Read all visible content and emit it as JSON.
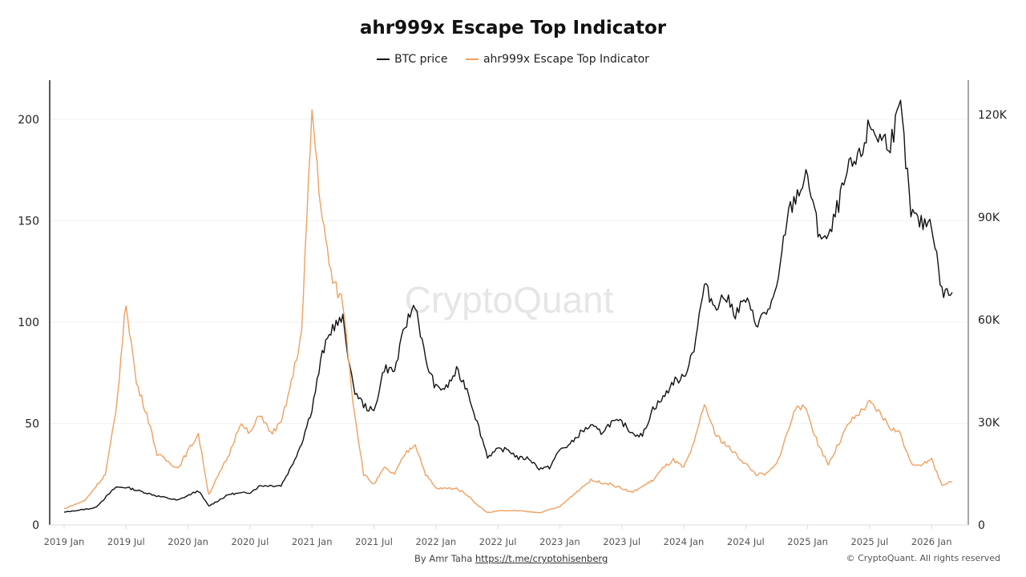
{
  "chart_data": {
    "type": "line",
    "title": "ahr999x Escape Top Indicator",
    "watermark": "CryptoQuant",
    "legend_position": "top-center",
    "grid": true,
    "x_ticks": [
      "2019 Jan",
      "2019 Jul",
      "2020 Jan",
      "2020 Jul",
      "2021 Jan",
      "2021 Jul",
      "2022 Jan",
      "2022 Jul",
      "2023 Jan",
      "2023 Jul",
      "2024 Jan",
      "2024 Jul",
      "2025 Jan",
      "2025 Jul",
      "2026 Jan"
    ],
    "y_left": {
      "ticks": [
        "0",
        "50",
        "100",
        "150",
        "200"
      ],
      "range": [
        0,
        220
      ]
    },
    "y_right": {
      "ticks": [
        "0",
        "30K",
        "60K",
        "90K",
        "120K"
      ],
      "range": [
        0,
        130000
      ]
    },
    "series": [
      {
        "name": "BTC price",
        "axis": "right",
        "color": "#111111",
        "points": [
          [
            "2019-01",
            3700
          ],
          [
            "2019-04",
            5000
          ],
          [
            "2019-06",
            11000
          ],
          [
            "2019-07",
            11000
          ],
          [
            "2019-10",
            8500
          ],
          [
            "2019-12",
            7200
          ],
          [
            "2020-02",
            10000
          ],
          [
            "2020-03",
            5500
          ],
          [
            "2020-05",
            9000
          ],
          [
            "2020-07",
            9500
          ],
          [
            "2020-08",
            11500
          ],
          [
            "2020-10",
            11500
          ],
          [
            "2020-11",
            17000
          ],
          [
            "2020-12",
            24000
          ],
          [
            "2021-01",
            34000
          ],
          [
            "2021-02",
            50000
          ],
          [
            "2021-03",
            58000
          ],
          [
            "2021-04",
            60000
          ],
          [
            "2021-05",
            40000
          ],
          [
            "2021-06",
            35000
          ],
          [
            "2021-07",
            33000
          ],
          [
            "2021-08",
            46000
          ],
          [
            "2021-09",
            45000
          ],
          [
            "2021-10",
            58000
          ],
          [
            "2021-11",
            65000
          ],
          [
            "2021-12",
            48000
          ],
          [
            "2022-01",
            40000
          ],
          [
            "2022-02",
            40000
          ],
          [
            "2022-03",
            45000
          ],
          [
            "2022-04",
            40000
          ],
          [
            "2022-05",
            30000
          ],
          [
            "2022-06",
            20000
          ],
          [
            "2022-07",
            22000
          ],
          [
            "2022-08",
            22000
          ],
          [
            "2022-09",
            19500
          ],
          [
            "2022-10",
            19500
          ],
          [
            "2022-11",
            16500
          ],
          [
            "2022-12",
            16800
          ],
          [
            "2023-01",
            22000
          ],
          [
            "2023-02",
            23500
          ],
          [
            "2023-03",
            27000
          ],
          [
            "2023-04",
            29000
          ],
          [
            "2023-05",
            27000
          ],
          [
            "2023-06",
            30000
          ],
          [
            "2023-07",
            30000
          ],
          [
            "2023-08",
            27000
          ],
          [
            "2023-09",
            26000
          ],
          [
            "2023-10",
            34000
          ],
          [
            "2023-11",
            37000
          ],
          [
            "2023-12",
            42000
          ],
          [
            "2024-01",
            43000
          ],
          [
            "2024-02",
            52000
          ],
          [
            "2024-03",
            70000
          ],
          [
            "2024-04",
            64000
          ],
          [
            "2024-05",
            67000
          ],
          [
            "2024-06",
            62000
          ],
          [
            "2024-07",
            66000
          ],
          [
            "2024-08",
            59000
          ],
          [
            "2024-09",
            62000
          ],
          [
            "2024-10",
            68000
          ],
          [
            "2024-11",
            90000
          ],
          [
            "2024-12",
            97000
          ],
          [
            "2025-01",
            102000
          ],
          [
            "2025-02",
            86000
          ],
          [
            "2025-03",
            83000
          ],
          [
            "2025-04",
            94000
          ],
          [
            "2025-05",
            104000
          ],
          [
            "2025-06",
            107000
          ],
          [
            "2025-07",
            117000
          ],
          [
            "2025-08",
            113000
          ],
          [
            "2025-09",
            112000
          ],
          [
            "2025-10",
            122000
          ],
          [
            "2025-11",
            91000
          ],
          [
            "2025-12",
            88000
          ],
          [
            "2026-01",
            89000
          ],
          [
            "2026-02",
            68000
          ],
          [
            "2026-03",
            68000
          ]
        ]
      },
      {
        "name": "ahr999x Escape Top Indicator",
        "axis": "left",
        "color": "#f0a060",
        "points": [
          [
            "2019-01",
            8
          ],
          [
            "2019-03",
            12
          ],
          [
            "2019-05",
            25
          ],
          [
            "2019-06",
            55
          ],
          [
            "2019-07",
            110
          ],
          [
            "2019-08",
            70
          ],
          [
            "2019-09",
            55
          ],
          [
            "2019-10",
            35
          ],
          [
            "2019-12",
            28
          ],
          [
            "2020-02",
            45
          ],
          [
            "2020-03",
            15
          ],
          [
            "2020-05",
            35
          ],
          [
            "2020-06",
            50
          ],
          [
            "2020-07",
            45
          ],
          [
            "2020-08",
            55
          ],
          [
            "2020-09",
            45
          ],
          [
            "2020-10",
            50
          ],
          [
            "2020-11",
            70
          ],
          [
            "2020-12",
            95
          ],
          [
            "2021-01",
            205
          ],
          [
            "2021-02",
            150
          ],
          [
            "2021-03",
            120
          ],
          [
            "2021-04",
            110
          ],
          [
            "2021-05",
            60
          ],
          [
            "2021-06",
            25
          ],
          [
            "2021-07",
            20
          ],
          [
            "2021-08",
            28
          ],
          [
            "2021-09",
            25
          ],
          [
            "2021-10",
            35
          ],
          [
            "2021-11",
            40
          ],
          [
            "2021-12",
            25
          ],
          [
            "2022-01",
            18
          ],
          [
            "2022-03",
            18
          ],
          [
            "2022-04",
            15
          ],
          [
            "2022-05",
            10
          ],
          [
            "2022-06",
            6
          ],
          [
            "2022-07",
            7
          ],
          [
            "2022-09",
            7
          ],
          [
            "2022-11",
            6
          ],
          [
            "2023-01",
            9
          ],
          [
            "2023-03",
            18
          ],
          [
            "2023-04",
            22
          ],
          [
            "2023-06",
            20
          ],
          [
            "2023-08",
            16
          ],
          [
            "2023-10",
            22
          ],
          [
            "2023-11",
            28
          ],
          [
            "2023-12",
            32
          ],
          [
            "2024-01",
            28
          ],
          [
            "2024-02",
            40
          ],
          [
            "2024-03",
            60
          ],
          [
            "2024-04",
            45
          ],
          [
            "2024-06",
            35
          ],
          [
            "2024-08",
            25
          ],
          [
            "2024-09",
            25
          ],
          [
            "2024-10",
            30
          ],
          [
            "2024-11",
            45
          ],
          [
            "2024-12",
            60
          ],
          [
            "2025-01",
            55
          ],
          [
            "2025-02",
            40
          ],
          [
            "2025-03",
            30
          ],
          [
            "2025-04",
            40
          ],
          [
            "2025-05",
            50
          ],
          [
            "2025-06",
            55
          ],
          [
            "2025-07",
            60
          ],
          [
            "2025-08",
            55
          ],
          [
            "2025-09",
            48
          ],
          [
            "2025-10",
            45
          ],
          [
            "2025-11",
            30
          ],
          [
            "2025-12",
            30
          ],
          [
            "2026-01",
            32
          ],
          [
            "2026-02",
            20
          ],
          [
            "2026-03",
            21
          ]
        ]
      }
    ]
  },
  "legend": {
    "btc": "BTC price",
    "indicator": "ahr999x Escape Top Indicator"
  },
  "footer": {
    "by": "By Amr Taha",
    "link": "https://t.me/cryptohisenberg",
    "copyright": "© CryptoQuant. All rights reserved"
  }
}
